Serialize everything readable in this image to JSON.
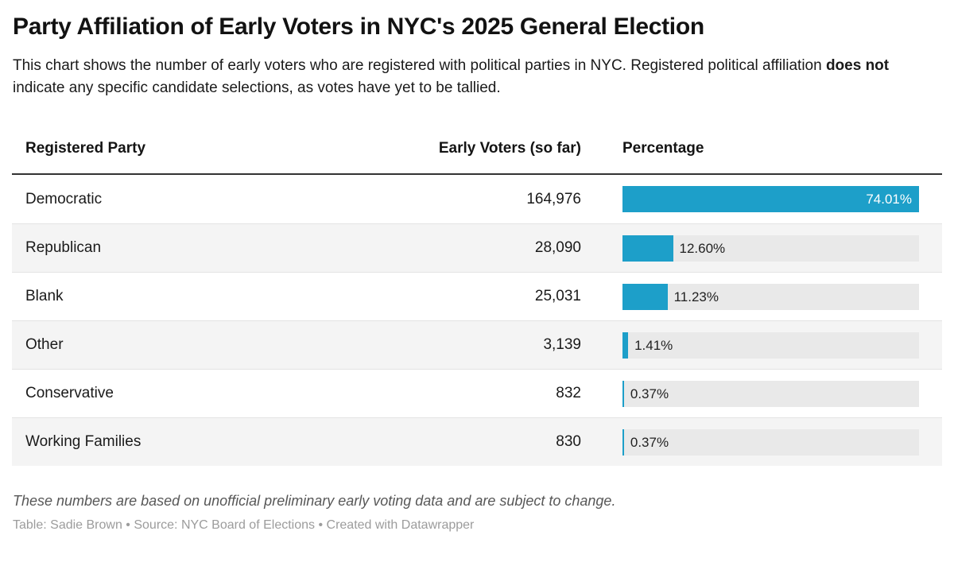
{
  "accent_color": "#1d9fc9",
  "stripe_color": "#f4f4f4",
  "track_color": "#e9e9e9",
  "header": {
    "title": "Party Affiliation of Early Voters in NYC's 2025 General Election",
    "description_part1": "This chart shows the number of early voters who are registered with political parties in NYC. Registered political affiliation ",
    "description_bold": "does not",
    "description_part2": " indicate any specific candidate selections, as votes have yet to be tallied."
  },
  "table": {
    "columns": {
      "party": "Registered Party",
      "voters": "Early Voters (so far)",
      "percentage": "Percentage"
    },
    "max_pct": 74.01,
    "rows": [
      {
        "party": "Democratic",
        "voters": "164,976",
        "pct": 74.01,
        "pct_label": "74.01%"
      },
      {
        "party": "Republican",
        "voters": "28,090",
        "pct": 12.6,
        "pct_label": "12.60%"
      },
      {
        "party": "Blank",
        "voters": "25,031",
        "pct": 11.23,
        "pct_label": "11.23%"
      },
      {
        "party": "Other",
        "voters": "3,139",
        "pct": 1.41,
        "pct_label": "1.41%"
      },
      {
        "party": "Conservative",
        "voters": "832",
        "pct": 0.37,
        "pct_label": "0.37%"
      },
      {
        "party": "Working Families",
        "voters": "830",
        "pct": 0.37,
        "pct_label": "0.37%"
      }
    ]
  },
  "footer": {
    "note": "These numbers are based on unofficial preliminary early voting data and are subject to change.",
    "attribution": "Table: Sadie Brown • Source: NYC Board of Elections • Created with Datawrapper"
  },
  "chart_data": {
    "type": "table",
    "title": "Party Affiliation of Early Voters in NYC's 2025 General Election",
    "subtitle": "This chart shows the number of early voters who are registered with political parties in NYC. Registered political affiliation does not indicate any specific candidate selections, as votes have yet to be tallied.",
    "columns": [
      "Registered Party",
      "Early Voters (so far)",
      "Percentage"
    ],
    "categories": [
      "Democratic",
      "Republican",
      "Blank",
      "Other",
      "Conservative",
      "Working Families"
    ],
    "series": [
      {
        "name": "Early Voters (so far)",
        "values": [
          164976,
          28090,
          25031,
          3139,
          832,
          830
        ]
      },
      {
        "name": "Percentage",
        "values": [
          74.01,
          12.6,
          11.23,
          1.41,
          0.37,
          0.37
        ]
      }
    ],
    "bar_style": "horizontal bars in table cells, scaled so max value (74.01%) fills track",
    "bar_scale_max": 74.01,
    "notes": "These numbers are based on unofficial preliminary early voting data and are subject to change.",
    "byline": "Table: Sadie Brown",
    "source": "NYC Board of Elections",
    "tool": "Created with Datawrapper"
  }
}
